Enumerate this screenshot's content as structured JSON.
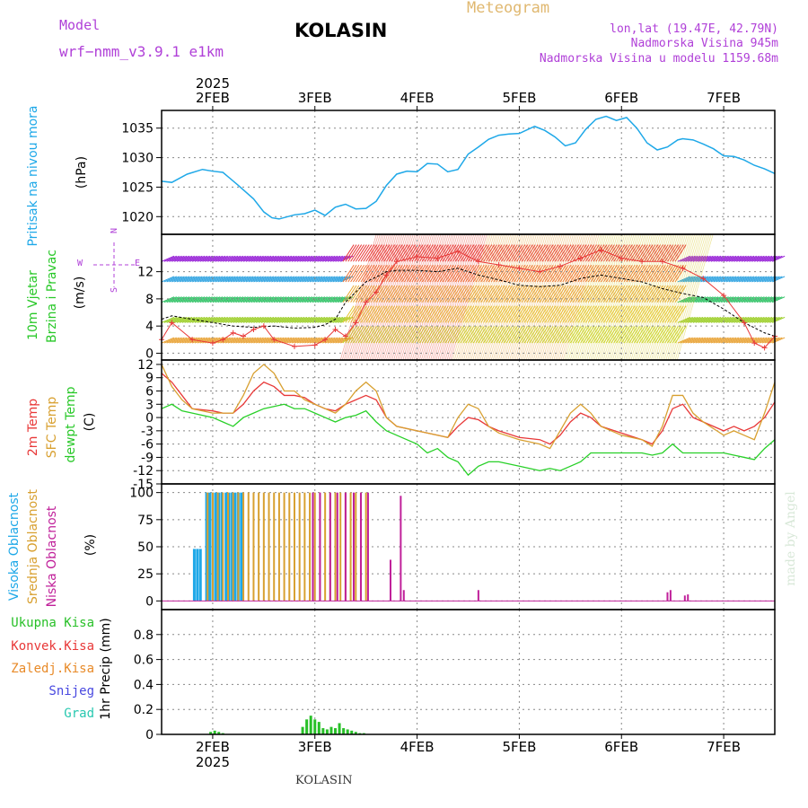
{
  "header": {
    "model_label": "Model",
    "model_name": "wrf−nmm_v3.9.1  e1km",
    "title": "KOLASIN",
    "meteogram": "Meteogram",
    "lonlat": "lon,lat (19.47E, 42.79N)",
    "elevation": "Nadmorska Visina 945m",
    "elevation_model": "Nadmorska Visina u modelu 1159.68m"
  },
  "footer": {
    "station": "KOLASIN",
    "watermark": "made by Angel"
  },
  "colors": {
    "pressure": "#1ea8e8",
    "temp2m": "#e83838",
    "sfc": "#d8a030",
    "dewpt": "#28d028",
    "wind_speed": "#000000",
    "gust": "#e83838",
    "high_cloud": "#1ea8e8",
    "mid_cloud": "#d8a030",
    "low_cloud": "#c0209a",
    "precip": "#28c028"
  },
  "chart_data": [
    {
      "type": "line",
      "panel": "pressure",
      "ylabel_main": "Pritisak na nivou mora",
      "ylabel_unit": "(hPa)",
      "ylim": [
        1017,
        1038
      ],
      "yticks": [
        "1035",
        "1030",
        "1025",
        "1020"
      ],
      "x_days": [
        "2FEB",
        "3FEB",
        "4FEB",
        "5FEB",
        "6FEB",
        "7FEB"
      ],
      "x_year": "2025",
      "series": [
        {
          "x": [
            1.5,
            1.6,
            1.75,
            1.9,
            2.0,
            2.1,
            2.25,
            2.4,
            2.5,
            2.58,
            2.65,
            2.8,
            2.9,
            3.0,
            3.1,
            3.2,
            3.3,
            3.4,
            3.5,
            3.6,
            3.7,
            3.8,
            3.9,
            4.0,
            4.1,
            4.2,
            4.3,
            4.4,
            4.5,
            4.6,
            4.7,
            4.8,
            4.9,
            5.0,
            5.15,
            5.25,
            5.35,
            5.45,
            5.55,
            5.65,
            5.75,
            5.85,
            5.95,
            6.05,
            6.15,
            6.25,
            6.35,
            6.45,
            6.55,
            6.6,
            6.7,
            6.8,
            6.9,
            7.0,
            7.1,
            7.2,
            7.3,
            7.4,
            7.5
          ],
          "y": [
            1026,
            1025.8,
            1027.2,
            1028,
            1027.7,
            1027.5,
            1025.3,
            1023,
            1020.8,
            1019.8,
            1019.6,
            1020.3,
            1020.5,
            1021.1,
            1020.2,
            1021.6,
            1022.1,
            1021.3,
            1021.4,
            1022.6,
            1025.3,
            1027.2,
            1027.7,
            1027.6,
            1029.0,
            1028.9,
            1027.6,
            1028.0,
            1030.6,
            1031.8,
            1033.1,
            1033.8,
            1034.0,
            1034.1,
            1035.3,
            1034.6,
            1033.5,
            1032.0,
            1032.5,
            1034.8,
            1036.5,
            1037.0,
            1036.3,
            1036.8,
            1035.0,
            1032.5,
            1031.3,
            1031.8,
            1033.0,
            1033.2,
            1033.0,
            1032.3,
            1031.5,
            1030.3,
            1030.2,
            1029.6,
            1028.7,
            1028.1,
            1027.3
          ]
        }
      ]
    },
    {
      "type": "line",
      "panel": "wind",
      "ylabel_main": "10m Vjetar",
      "ylabel_sub": "Brzina i Pravac",
      "ylabel_unit": "(m/s)",
      "compass": {
        "n": "N",
        "s": "S",
        "w": "W",
        "e": "E"
      },
      "ylim": [
        -1,
        17.5
      ],
      "yticks": [
        "12",
        "8",
        "4",
        "0"
      ],
      "series": [
        {
          "name": "speed",
          "x": [
            1.5,
            1.6,
            1.8,
            2.0,
            2.2,
            2.4,
            2.6,
            2.8,
            3.0,
            3.1,
            3.2,
            3.3,
            3.4,
            3.5,
            3.6,
            3.7,
            3.8,
            4.0,
            4.2,
            4.4,
            4.6,
            4.8,
            5.0,
            5.2,
            5.4,
            5.6,
            5.8,
            6.0,
            6.2,
            6.4,
            6.6,
            6.7,
            6.8,
            7.0,
            7.2,
            7.4,
            7.5
          ],
          "y": [
            5,
            5.5,
            5.0,
            4.5,
            4.0,
            3.8,
            4.0,
            3.7,
            3.8,
            4.2,
            5.0,
            7.5,
            9.0,
            10.5,
            11.2,
            12.0,
            12.2,
            12.2,
            12.0,
            12.5,
            11.5,
            10.8,
            10.0,
            9.8,
            10.0,
            11.0,
            11.5,
            11.0,
            10.5,
            9.5,
            8.8,
            8.5,
            8.2,
            6.5,
            4.5,
            3.0,
            2.5
          ]
        },
        {
          "name": "gust",
          "x": [
            1.5,
            1.6,
            1.8,
            2.0,
            2.1,
            2.2,
            2.3,
            2.4,
            2.5,
            2.6,
            2.8,
            3.0,
            3.1,
            3.2,
            3.3,
            3.4,
            3.5,
            3.6,
            3.7,
            3.8,
            4.0,
            4.2,
            4.4,
            4.6,
            4.8,
            5.0,
            5.2,
            5.4,
            5.6,
            5.8,
            6.0,
            6.2,
            6.4,
            6.6,
            6.8,
            7.0,
            7.2,
            7.3,
            7.4,
            7.5
          ],
          "y": [
            2,
            4.5,
            2.0,
            1.5,
            2.0,
            3.0,
            2.5,
            3.5,
            4.0,
            2.0,
            1.0,
            1.2,
            2.0,
            3.5,
            2.5,
            4.5,
            7.5,
            9.0,
            11.5,
            13.5,
            14.2,
            14.0,
            15.0,
            13.5,
            13.0,
            12.5,
            12.0,
            12.8,
            14.0,
            15.2,
            14.0,
            13.5,
            13.5,
            12.5,
            11.0,
            8.5,
            4.5,
            1.5,
            0.8,
            2.5
          ]
        }
      ]
    },
    {
      "type": "line",
      "panel": "temperature",
      "ylabel_lines": [
        "2m Temp",
        "SFC Temp",
        "dewpt Temp"
      ],
      "ylabel_unit": "(C)",
      "ylim": [
        -15,
        13
      ],
      "yticks": [
        "12",
        "9",
        "6",
        "3",
        "0",
        "-3",
        "-6",
        "-9",
        "-12",
        "-15"
      ],
      "series": [
        {
          "name": "2m Temp",
          "x": [
            1.5,
            1.6,
            1.7,
            1.8,
            2.0,
            2.1,
            2.2,
            2.3,
            2.4,
            2.5,
            2.6,
            2.7,
            2.8,
            2.9,
            3.0,
            3.1,
            3.2,
            3.3,
            3.4,
            3.5,
            3.6,
            3.7,
            3.8,
            4.0,
            4.2,
            4.3,
            4.4,
            4.5,
            4.6,
            4.7,
            4.8,
            5.0,
            5.2,
            5.3,
            5.4,
            5.5,
            5.6,
            5.7,
            5.8,
            6.0,
            6.2,
            6.3,
            6.4,
            6.5,
            6.6,
            6.7,
            6.8,
            7.0,
            7.1,
            7.2,
            7.3,
            7.4,
            7.5
          ],
          "y": [
            10,
            8,
            5,
            2,
            1.5,
            1,
            1,
            3,
            6,
            8,
            7,
            5,
            5,
            4.5,
            3,
            2,
            1.5,
            3,
            4,
            5,
            4,
            0,
            -2,
            -3,
            -4,
            -4.5,
            -2,
            0,
            -0.5,
            -2,
            -3,
            -4.5,
            -5,
            -6,
            -4,
            -1,
            1,
            0,
            -2,
            -3.5,
            -5,
            -6,
            -3,
            2,
            3,
            0,
            -1,
            -3,
            -2,
            -3,
            -2,
            0,
            3.5
          ]
        },
        {
          "name": "SFC Temp",
          "x": [
            1.5,
            1.6,
            1.7,
            1.8,
            2.0,
            2.1,
            2.2,
            2.3,
            2.4,
            2.5,
            2.6,
            2.7,
            2.8,
            2.9,
            3.0,
            3.1,
            3.2,
            3.3,
            3.4,
            3.5,
            3.6,
            3.7,
            3.8,
            4.0,
            4.2,
            4.3,
            4.4,
            4.5,
            4.6,
            4.7,
            4.8,
            5.0,
            5.2,
            5.3,
            5.4,
            5.5,
            5.6,
            5.7,
            5.8,
            6.0,
            6.2,
            6.3,
            6.4,
            6.5,
            6.6,
            6.7,
            6.8,
            7.0,
            7.1,
            7.2,
            7.3,
            7.4,
            7.5
          ],
          "y": [
            12,
            7,
            4,
            2,
            1,
            1,
            1,
            5,
            10,
            12,
            10,
            6,
            6,
            4,
            3,
            2,
            1,
            3,
            6,
            8,
            6,
            0,
            -2,
            -3,
            -4,
            -4.5,
            0,
            3,
            2,
            -2,
            -3.5,
            -5,
            -6,
            -7,
            -3,
            1,
            3,
            1,
            -2,
            -4,
            -5,
            -6.5,
            -2,
            5,
            5,
            1,
            -1,
            -4,
            -3,
            -4,
            -5,
            1,
            8
          ]
        },
        {
          "name": "dewpt Temp",
          "x": [
            1.5,
            1.6,
            1.7,
            1.8,
            2.0,
            2.1,
            2.2,
            2.3,
            2.4,
            2.5,
            2.6,
            2.7,
            2.8,
            2.9,
            3.0,
            3.1,
            3.2,
            3.3,
            3.4,
            3.5,
            3.6,
            3.7,
            3.8,
            4.0,
            4.1,
            4.2,
            4.3,
            4.4,
            4.5,
            4.6,
            4.7,
            4.8,
            5.0,
            5.2,
            5.3,
            5.4,
            5.5,
            5.6,
            5.7,
            5.8,
            6.0,
            6.2,
            6.3,
            6.4,
            6.5,
            6.6,
            6.7,
            6.8,
            7.0,
            7.1,
            7.2,
            7.3,
            7.4,
            7.5
          ],
          "y": [
            2,
            3,
            1.5,
            1,
            0,
            -1,
            -2,
            0,
            1,
            2,
            2.5,
            3,
            2,
            2,
            1,
            0,
            -1,
            0,
            0.5,
            1.5,
            -1,
            -3,
            -4,
            -6,
            -8,
            -7,
            -9,
            -10,
            -13,
            -11,
            -10,
            -10,
            -11,
            -12,
            -11.5,
            -12,
            -11,
            -10,
            -8,
            -8,
            -8,
            -8,
            -8.5,
            -8,
            -6,
            -8,
            -8,
            -8,
            -8,
            -8.5,
            -9,
            -9.5,
            -7,
            -5
          ]
        }
      ]
    },
    {
      "type": "bar",
      "panel": "clouds",
      "ylabel_lines": [
        "Visoka Oblacnost",
        "Srednja Oblacnost",
        "Niska Oblacnost"
      ],
      "ylabel_unit": "(%)",
      "ylim": [
        -8,
        108
      ],
      "yticks": [
        "100",
        "75",
        "50",
        "25",
        "0"
      ],
      "series": [
        {
          "name": "Visoka Oblacnost",
          "x": [
            1.82,
            1.85,
            1.88,
            1.94,
            1.97,
            2.0,
            2.03,
            2.06,
            2.09,
            2.13,
            2.16,
            2.19,
            2.22,
            2.25,
            2.28
          ],
          "y": [
            48,
            48,
            48,
            100,
            100,
            100,
            100,
            100,
            100,
            100,
            100,
            100,
            100,
            100,
            100
          ]
        },
        {
          "name": "Srednja Oblacnost",
          "x": [
            1.95,
            2.0,
            2.05,
            2.1,
            2.15,
            2.2,
            2.25,
            2.3,
            2.35,
            2.4,
            2.45,
            2.5,
            2.55,
            2.6,
            2.65,
            2.7,
            2.75,
            2.8,
            2.85,
            2.9,
            2.95,
            3.0,
            3.05,
            3.1,
            3.15,
            3.2,
            3.25,
            3.3,
            3.35,
            3.4,
            3.45,
            3.5
          ],
          "y": [
            100,
            100,
            100,
            100,
            100,
            100,
            100,
            100,
            100,
            100,
            100,
            100,
            100,
            100,
            100,
            100,
            100,
            100,
            100,
            100,
            100,
            100,
            100,
            100,
            100,
            100,
            100,
            100,
            100,
            100,
            100,
            100
          ]
        },
        {
          "name": "Niska Oblacnost",
          "x": [
            2.98,
            3.05,
            3.15,
            3.22,
            3.3,
            3.38,
            3.45,
            3.52,
            3.74,
            3.84,
            3.87,
            4.6,
            6.45,
            6.48,
            6.62,
            6.65
          ],
          "y": [
            100,
            100,
            100,
            100,
            100,
            100,
            100,
            100,
            38,
            97,
            10,
            10,
            8,
            10,
            5,
            6
          ]
        }
      ]
    },
    {
      "type": "bar",
      "panel": "precip",
      "legend": [
        "Ukupna Kisa",
        "Konvek.Kisa",
        "Zaledj.Kisa",
        "Snijeg",
        "Grad"
      ],
      "legend_colors": [
        "#28c028",
        "#e83838",
        "#e88a28",
        "#4848e0",
        "#28c8b0"
      ],
      "ylabel_main": "1hr Precip",
      "ylabel_unit": "(mm)",
      "ylim": [
        0,
        1
      ],
      "yticks": [
        "0.8",
        "0.6",
        "0.4",
        "0.2",
        "0"
      ],
      "series": [
        {
          "name": "Ukupna Kisa",
          "x": [
            1.98,
            2.02,
            2.06,
            2.1,
            2.88,
            2.92,
            2.96,
            3.0,
            3.04,
            3.08,
            3.12,
            3.16,
            3.2,
            3.24,
            3.28,
            3.32,
            3.36,
            3.4,
            3.44,
            3.48
          ],
          "y": [
            0.02,
            0.03,
            0.02,
            0.01,
            0.06,
            0.12,
            0.15,
            0.12,
            0.1,
            0.05,
            0.04,
            0.06,
            0.05,
            0.09,
            0.05,
            0.04,
            0.03,
            0.02,
            0.01,
            0.01
          ]
        }
      ]
    }
  ]
}
